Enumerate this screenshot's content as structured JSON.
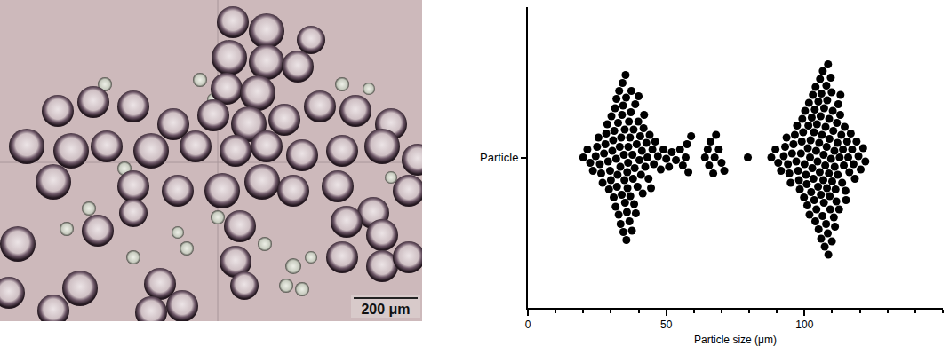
{
  "chart_data": {
    "type": "scatter",
    "marker": "circle",
    "color": "#000000",
    "categories": [
      "Particle"
    ],
    "x": [
      20,
      21.5,
      22.5,
      23.5,
      24.5,
      25,
      25.5,
      26,
      26.5,
      27,
      27.5,
      28,
      28.3,
      28.7,
      29,
      29.3,
      29.7,
      30,
      30.2,
      30.5,
      30.8,
      31,
      31.2,
      31.5,
      31.7,
      31.9,
      32,
      32.2,
      32.4,
      32.6,
      32.8,
      33,
      33.2,
      33.4,
      33.5,
      33.7,
      33.9,
      34,
      34.2,
      34.4,
      34.5,
      34.7,
      34.9,
      35,
      35.1,
      35.3,
      35.5,
      35.6,
      35.8,
      35.9,
      36,
      36.2,
      36.3,
      36.5,
      36.7,
      36.9,
      37,
      37.2,
      37.4,
      37.6,
      37.8,
      38,
      38.2,
      38.4,
      38.6,
      38.8,
      39,
      39.3,
      39.6,
      39.9,
      40,
      40.3,
      40.6,
      40.9,
      41.2,
      41.5,
      41.8,
      42,
      42.4,
      42.8,
      43.2,
      43.6,
      44,
      44.5,
      45,
      45.5,
      46,
      47,
      48,
      49,
      50,
      51,
      52,
      53.5,
      55,
      56,
      57,
      57.5,
      58,
      59,
      64,
      65,
      65.5,
      66,
      67,
      67.5,
      68,
      69,
      70,
      71,
      79.5,
      88,
      89.5,
      90.5,
      91.5,
      92.5,
      93,
      93.5,
      94,
      94.5,
      95,
      95.5,
      96,
      96.5,
      97,
      97.3,
      97.7,
      98,
      98.3,
      98.7,
      99,
      99.2,
      99.5,
      99.8,
      100,
      100.2,
      100.5,
      100.8,
      101,
      101.2,
      101.4,
      101.6,
      101.8,
      102,
      102.2,
      102.4,
      102.6,
      102.8,
      103,
      103.2,
      103.4,
      103.5,
      103.7,
      103.9,
      104,
      104.2,
      104.3,
      104.5,
      104.7,
      104.9,
      105,
      105.1,
      105.3,
      105.5,
      105.6,
      105.8,
      105.9,
      106,
      106.1,
      106.3,
      106.5,
      106.6,
      106.8,
      106.9,
      107,
      107.1,
      107.3,
      107.5,
      107.6,
      107.8,
      107.9,
      108,
      108.1,
      108.2,
      108.4,
      108.5,
      108.6,
      108.8,
      108.9,
      109,
      109.1,
      109.3,
      109.5,
      109.6,
      109.8,
      109.9,
      110,
      110.2,
      110.4,
      110.6,
      110.8,
      110.9,
      111,
      111.2,
      111.5,
      111.7,
      111.9,
      112,
      112.2,
      112.5,
      112.7,
      112.9,
      113,
      113.3,
      113.6,
      113.9,
      114.2,
      114.5,
      114.8,
      115,
      115.4,
      115.8,
      116.2,
      116.7,
      117.2,
      117.7,
      118.2,
      118.8,
      119.5,
      120.3,
      121.2,
      122
    ],
    "xlim": [
      0,
      150
    ],
    "xticks": [
      0,
      50,
      100
    ],
    "xlabel": "Particle size (μm)",
    "grid": false
  },
  "image": {
    "scale_bar": "200 μm"
  }
}
